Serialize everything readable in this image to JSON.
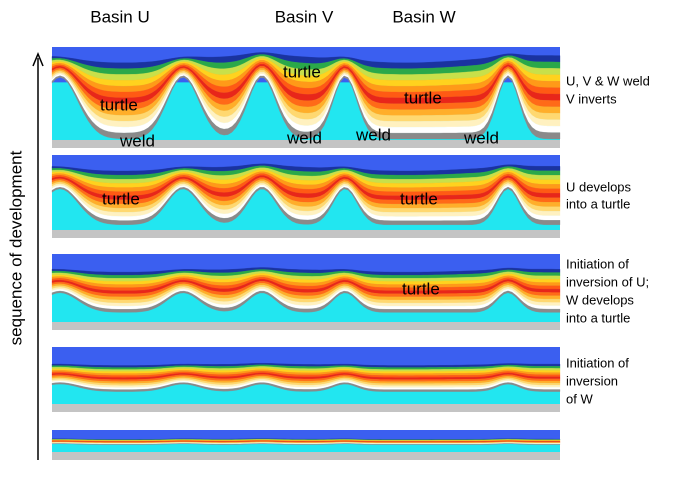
{
  "basins": [
    "Basin U",
    "Basin V",
    "Basin W"
  ],
  "axis_label": "sequence of development",
  "panels": [
    {
      "side_label": [
        "U, V & W weld",
        "V inverts"
      ],
      "annotations": [
        "turtle",
        "weld",
        "turtle",
        "weld",
        "weld",
        "turtle",
        "weld"
      ]
    },
    {
      "side_label": [
        "U develops",
        "into a turtle"
      ],
      "annotations": [
        "turtle",
        "turtle"
      ]
    },
    {
      "side_label": [
        "Initiation of",
        "inversion of U;",
        "W develops",
        "into a turtle"
      ],
      "annotations": [
        "turtle"
      ]
    },
    {
      "side_label": [
        "Initiation of",
        "inversion",
        "of W"
      ],
      "annotations": []
    },
    {
      "side_label": [],
      "annotations": []
    }
  ]
}
